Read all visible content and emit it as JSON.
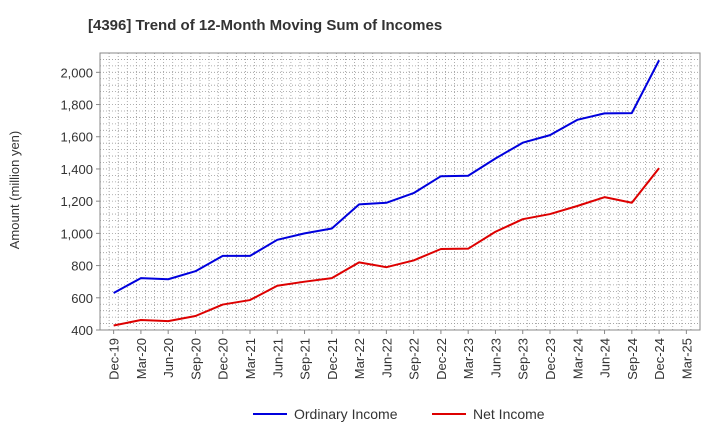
{
  "chart_data": {
    "type": "line",
    "title": "[4396]  Trend of 12-Month Moving Sum of Incomes",
    "xlabel": "",
    "ylabel": "Amount (million yen)",
    "ylim": [
      400,
      2120
    ],
    "yticks": [
      400,
      600,
      800,
      1000,
      1200,
      1400,
      1600,
      1800,
      2000
    ],
    "ytick_labels": [
      "400",
      "600",
      "800",
      "1,000",
      "1,200",
      "1,400",
      "1,600",
      "1,800",
      "2,000"
    ],
    "categories": [
      "Dec-19",
      "Mar-20",
      "Jun-20",
      "Sep-20",
      "Dec-20",
      "Mar-21",
      "Jun-21",
      "Sep-21",
      "Dec-21",
      "Mar-22",
      "Jun-22",
      "Sep-22",
      "Dec-22",
      "Mar-23",
      "Jun-23",
      "Sep-23",
      "Dec-23",
      "Mar-24",
      "Jun-24",
      "Sep-24",
      "Dec-24",
      "Mar-25"
    ],
    "grid": true,
    "legend_position": "bottom",
    "series": [
      {
        "name": "Ordinary Income",
        "color": "#0000dd",
        "values": [
          630,
          722,
          715,
          765,
          860,
          860,
          960,
          1000,
          1030,
          1180,
          1190,
          1250,
          1355,
          1358,
          1465,
          1563,
          1610,
          1705,
          1745,
          1747,
          2075,
          null
        ]
      },
      {
        "name": "Net Income",
        "color": "#dd0000",
        "values": [
          428,
          462,
          455,
          487,
          558,
          586,
          675,
          700,
          722,
          820,
          790,
          832,
          903,
          905,
          1010,
          1088,
          1120,
          1170,
          1225,
          1190,
          1405,
          null
        ]
      }
    ]
  }
}
